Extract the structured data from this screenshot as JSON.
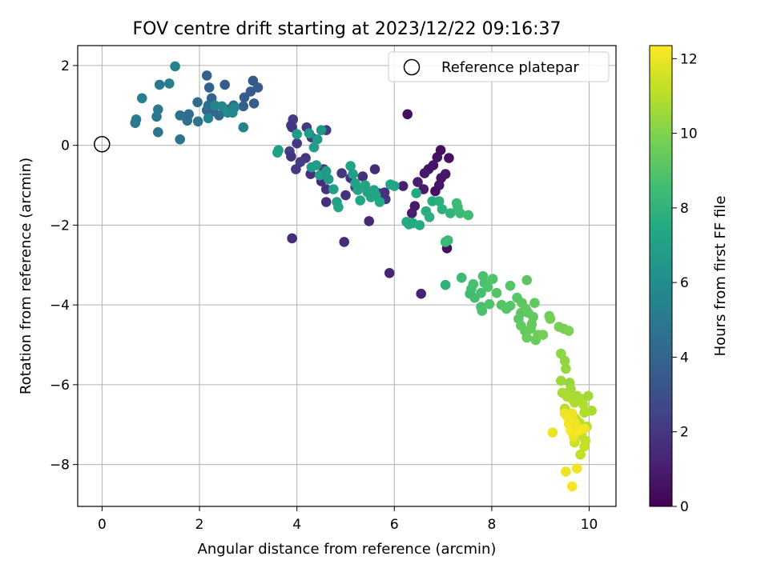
{
  "chart_data": {
    "type": "scatter",
    "title": "FOV centre drift starting at 2023/12/22 09:16:37",
    "xlabel": "Angular distance from reference (arcmin)",
    "ylabel": "Rotation from reference (arcmin)",
    "xlim": [
      -0.5,
      10.55
    ],
    "ylim": [
      -9.05,
      2.5
    ],
    "xticks": [
      0,
      2,
      4,
      6,
      8,
      10
    ],
    "xtick_labels": [
      "0",
      "2",
      "4",
      "6",
      "8",
      "10"
    ],
    "yticks": [
      2,
      0,
      -2,
      -4,
      -6,
      -8
    ],
    "ytick_labels": [
      "2",
      "0",
      "−2",
      "−4",
      "−6",
      "−8"
    ],
    "grid": true,
    "legend": {
      "position": "top-right",
      "entries": [
        "Reference platepar"
      ]
    },
    "reference_point": {
      "name": "Reference platepar",
      "x": 0,
      "y": 0
    },
    "colorbar": {
      "label": "Hours from first FF file",
      "range": [
        0,
        12.35
      ],
      "ticks": [
        0,
        2,
        4,
        6,
        8,
        10,
        12
      ],
      "tick_labels": [
        "0",
        "2",
        "4",
        "6",
        "8",
        "10",
        "12"
      ],
      "colormap": "viridis"
    },
    "series": [
      {
        "color_by": "hours",
        "points": [
          [
            6.27,
            0.78,
            0.5
          ],
          [
            6.95,
            -0.12,
            0.4
          ],
          [
            7.12,
            -0.32,
            0.5
          ],
          [
            6.88,
            -0.3,
            0.6
          ],
          [
            6.8,
            -0.5,
            0.7
          ],
          [
            6.7,
            -0.6,
            0.6
          ],
          [
            6.62,
            -0.7,
            0.8
          ],
          [
            6.96,
            -0.82,
            0.7
          ],
          [
            6.92,
            -1.0,
            0.7
          ],
          [
            6.84,
            -1.15,
            0.5
          ],
          [
            6.6,
            -1.1,
            0.9
          ],
          [
            6.48,
            -0.92,
            1.0
          ],
          [
            6.42,
            -1.52,
            0.9
          ],
          [
            6.36,
            -1.7,
            1.0
          ],
          [
            6.18,
            -1.02,
            1.1
          ],
          [
            7.05,
            -0.72,
            0.8
          ],
          [
            7.08,
            -2.58,
            0.5
          ],
          [
            6.55,
            -3.72,
            1.2
          ],
          [
            5.9,
            -3.2,
            1.3
          ],
          [
            5.48,
            -1.9,
            1.4
          ],
          [
            4.97,
            -2.42,
            1.5
          ],
          [
            3.9,
            -2.33,
            1.6
          ],
          [
            4.6,
            0.38,
            2.0
          ],
          [
            4.3,
            0.2,
            1.9
          ],
          [
            4.2,
            0.45,
            2.1
          ],
          [
            4.0,
            0.05,
            2.0
          ],
          [
            3.88,
            0.5,
            2.2
          ],
          [
            3.92,
            0.65,
            2.1
          ],
          [
            3.9,
            0.45,
            1.9
          ],
          [
            3.85,
            -0.15,
            2.3
          ],
          [
            4.18,
            -0.32,
            2.0
          ],
          [
            4.07,
            -0.42,
            2.2
          ],
          [
            3.98,
            -0.6,
            2.1
          ],
          [
            3.88,
            -0.28,
            1.8
          ],
          [
            4.28,
            -0.72,
            1.7
          ],
          [
            4.55,
            -0.6,
            2.0
          ],
          [
            4.5,
            -0.9,
            1.6
          ],
          [
            4.6,
            -1.1,
            1.8
          ],
          [
            4.6,
            -1.42,
            1.7
          ],
          [
            4.92,
            -0.7,
            2.0
          ],
          [
            5.1,
            -0.82,
            1.9
          ],
          [
            5.2,
            -1.05,
            2.2
          ],
          [
            5.0,
            -1.25,
            1.8
          ],
          [
            5.35,
            -0.78,
            1.7
          ],
          [
            5.6,
            -0.6,
            1.6
          ],
          [
            5.68,
            -1.2,
            1.9
          ],
          [
            5.82,
            -1.35,
            2.0
          ],
          [
            5.8,
            -1.18,
            1.8
          ],
          [
            1.5,
            1.98,
            5.5
          ],
          [
            1.38,
            1.55,
            5.2
          ],
          [
            1.18,
            1.52,
            5.0
          ],
          [
            0.82,
            1.18,
            5.2
          ],
          [
            1.15,
            0.9,
            5.0
          ],
          [
            1.12,
            0.72,
            4.9
          ],
          [
            0.7,
            0.65,
            5.1
          ],
          [
            0.68,
            0.56,
            5.0
          ],
          [
            1.15,
            0.33,
            4.8
          ],
          [
            1.6,
            0.15,
            4.8
          ],
          [
            1.6,
            0.75,
            4.6
          ],
          [
            1.72,
            0.72,
            4.5
          ],
          [
            1.75,
            0.62,
            4.6
          ],
          [
            1.78,
            0.78,
            4.4
          ],
          [
            1.97,
            0.6,
            4.7
          ],
          [
            1.96,
            1.08,
            4.4
          ],
          [
            2.15,
            0.88,
            4.2
          ],
          [
            2.18,
            1.0,
            4.5
          ],
          [
            2.25,
            1.18,
            4.0
          ],
          [
            2.15,
            1.75,
            3.9
          ],
          [
            2.2,
            1.45,
            3.8
          ],
          [
            2.52,
            1.52,
            3.6
          ],
          [
            2.28,
            0.85,
            4.1
          ],
          [
            2.4,
            0.75,
            4.3
          ],
          [
            2.5,
            0.85,
            4.4
          ],
          [
            2.58,
            0.9,
            4.2
          ],
          [
            2.7,
            1.0,
            4.0
          ],
          [
            2.9,
            0.98,
            3.7
          ],
          [
            2.92,
            1.2,
            3.6
          ],
          [
            3.05,
            1.35,
            3.5
          ],
          [
            3.1,
            1.62,
            3.4
          ],
          [
            3.2,
            1.45,
            3.5
          ],
          [
            3.12,
            1.05,
            3.6
          ],
          [
            2.9,
            0.45,
            5.5
          ],
          [
            2.18,
            0.68,
            5.6
          ],
          [
            2.32,
            1.0,
            5.6
          ],
          [
            2.46,
            0.98,
            5.8
          ],
          [
            2.58,
            0.82,
            5.9
          ],
          [
            2.68,
            0.82,
            5.8
          ],
          [
            2.72,
            0.95,
            5.6
          ],
          [
            3.6,
            -0.18,
            6.8
          ],
          [
            3.62,
            -0.12,
            6.9
          ],
          [
            4.0,
            0.28,
            6.7
          ],
          [
            4.25,
            0.3,
            6.6
          ],
          [
            4.42,
            0.15,
            6.7
          ],
          [
            4.35,
            -0.05,
            6.8
          ],
          [
            4.5,
            0.38,
            6.5
          ],
          [
            4.3,
            -0.55,
            6.7
          ],
          [
            4.4,
            -0.5,
            6.8
          ],
          [
            4.47,
            -0.75,
            6.9
          ],
          [
            4.6,
            -0.65,
            6.6
          ],
          [
            4.65,
            -0.85,
            6.7
          ],
          [
            4.75,
            -1.1,
            6.9
          ],
          [
            4.82,
            -1.42,
            7.0
          ],
          [
            4.85,
            -1.55,
            7.2
          ],
          [
            5.1,
            -0.52,
            7.1
          ],
          [
            5.15,
            -0.72,
            7.0
          ],
          [
            5.2,
            -0.95,
            7.1
          ],
          [
            5.25,
            -1.12,
            7.2
          ],
          [
            5.3,
            -1.38,
            7.3
          ],
          [
            5.4,
            -1.0,
            7.2
          ],
          [
            5.45,
            -1.18,
            7.1
          ],
          [
            5.52,
            -1.3,
            7.2
          ],
          [
            5.58,
            -1.12,
            7.3
          ],
          [
            5.62,
            -1.25,
            7.2
          ],
          [
            5.7,
            -1.42,
            7.4
          ],
          [
            5.92,
            -0.98,
            7.3
          ],
          [
            6.0,
            -1.02,
            7.2
          ],
          [
            6.25,
            -1.92,
            7.5
          ],
          [
            6.3,
            -1.98,
            7.6
          ],
          [
            6.38,
            -1.95,
            7.5
          ],
          [
            6.45,
            -1.2,
            7.5
          ],
          [
            6.52,
            -2.0,
            7.6
          ],
          [
            6.65,
            -1.65,
            7.7
          ],
          [
            6.72,
            -1.8,
            7.8
          ],
          [
            6.78,
            -1.4,
            7.6
          ],
          [
            6.92,
            -1.4,
            7.7
          ],
          [
            6.98,
            -1.6,
            7.8
          ],
          [
            7.05,
            -2.42,
            8.2
          ],
          [
            7.1,
            -2.38,
            8.3
          ],
          [
            7.15,
            -1.7,
            8.0
          ],
          [
            7.28,
            -1.45,
            8.3
          ],
          [
            7.3,
            -1.55,
            8.4
          ],
          [
            7.35,
            -1.7,
            8.3
          ],
          [
            7.52,
            -1.75,
            8.5
          ],
          [
            7.05,
            -3.5,
            7.9
          ],
          [
            7.38,
            -3.32,
            8.3
          ],
          [
            7.55,
            -3.72,
            8.5
          ],
          [
            7.58,
            -3.6,
            8.6
          ],
          [
            7.62,
            -3.48,
            8.7
          ],
          [
            7.65,
            -3.82,
            8.6
          ],
          [
            7.78,
            -3.7,
            8.7
          ],
          [
            7.82,
            -3.28,
            8.8
          ],
          [
            7.85,
            -3.45,
            8.8
          ],
          [
            7.92,
            -3.55,
            8.9
          ],
          [
            8.02,
            -3.35,
            8.9
          ],
          [
            8.1,
            -3.7,
            9.0
          ],
          [
            7.78,
            -4.05,
            8.7
          ],
          [
            7.8,
            -4.15,
            8.8
          ],
          [
            7.95,
            -3.98,
            8.9
          ],
          [
            8.2,
            -4.0,
            9.0
          ],
          [
            8.3,
            -4.1,
            9.1
          ],
          [
            8.38,
            -4.02,
            9.1
          ],
          [
            8.38,
            -3.52,
            9.0
          ],
          [
            8.52,
            -3.82,
            9.1
          ],
          [
            8.62,
            -3.95,
            9.2
          ],
          [
            8.72,
            -3.38,
            9.2
          ],
          [
            8.75,
            -4.2,
            9.3
          ],
          [
            8.88,
            -3.95,
            9.3
          ],
          [
            8.55,
            -4.35,
            9.2
          ],
          [
            8.6,
            -4.52,
            9.3
          ],
          [
            8.68,
            -4.65,
            9.4
          ],
          [
            8.72,
            -4.82,
            9.5
          ],
          [
            8.8,
            -4.6,
            9.4
          ],
          [
            8.85,
            -4.3,
            9.3
          ],
          [
            8.9,
            -4.88,
            9.5
          ],
          [
            8.95,
            -4.75,
            9.6
          ],
          [
            8.6,
            -4.2,
            9.2
          ],
          [
            8.7,
            -4.1,
            9.3
          ],
          [
            8.82,
            -4.48,
            9.4
          ],
          [
            9.05,
            -4.75,
            9.7
          ],
          [
            9.18,
            -4.28,
            9.6
          ],
          [
            9.2,
            -4.35,
            9.7
          ],
          [
            9.38,
            -4.55,
            9.8
          ],
          [
            9.48,
            -4.6,
            9.8
          ],
          [
            9.58,
            -4.65,
            9.9
          ],
          [
            9.42,
            -5.22,
            10.2
          ],
          [
            9.5,
            -5.4,
            10.3
          ],
          [
            9.52,
            -5.6,
            10.4
          ],
          [
            9.42,
            -5.9,
            10.5
          ],
          [
            9.6,
            -5.95,
            10.4
          ],
          [
            9.62,
            -6.1,
            10.6
          ],
          [
            9.45,
            -6.2,
            10.7
          ],
          [
            9.55,
            -6.3,
            10.8
          ],
          [
            9.65,
            -6.35,
            10.8
          ],
          [
            9.7,
            -6.45,
            10.9
          ],
          [
            9.75,
            -6.28,
            10.7
          ],
          [
            9.82,
            -6.35,
            10.8
          ],
          [
            9.88,
            -6.5,
            10.9
          ],
          [
            9.98,
            -6.28,
            10.6
          ],
          [
            10.05,
            -6.65,
            10.7
          ],
          [
            9.9,
            -6.7,
            10.9
          ],
          [
            9.5,
            -6.6,
            11.0
          ],
          [
            9.6,
            -6.72,
            11.1
          ],
          [
            9.72,
            -6.85,
            11.2
          ],
          [
            9.8,
            -6.95,
            11.1
          ],
          [
            9.85,
            -7.2,
            11.3
          ],
          [
            9.95,
            -7.05,
            11.0
          ],
          [
            9.92,
            -7.4,
            11.2
          ],
          [
            9.9,
            -7.55,
            11.3
          ],
          [
            9.82,
            -7.75,
            11.2
          ],
          [
            9.7,
            -7.45,
            11.4
          ],
          [
            9.75,
            -7.3,
            11.3
          ],
          [
            9.25,
            -7.2,
            12.0
          ],
          [
            9.5,
            -6.72,
            12.1
          ],
          [
            9.55,
            -6.8,
            12.2
          ],
          [
            9.65,
            -6.72,
            12.1
          ],
          [
            9.7,
            -6.95,
            12.2
          ],
          [
            9.58,
            -6.98,
            12.2
          ],
          [
            9.62,
            -7.15,
            12.3
          ],
          [
            9.68,
            -7.3,
            12.0
          ],
          [
            9.78,
            -7.15,
            12.3
          ],
          [
            9.72,
            -7.02,
            12.1
          ],
          [
            9.9,
            -7.1,
            12.2
          ],
          [
            9.52,
            -8.18,
            12.0
          ],
          [
            9.75,
            -8.1,
            12.1
          ],
          [
            9.65,
            -8.55,
            12.2
          ]
        ]
      }
    ]
  }
}
